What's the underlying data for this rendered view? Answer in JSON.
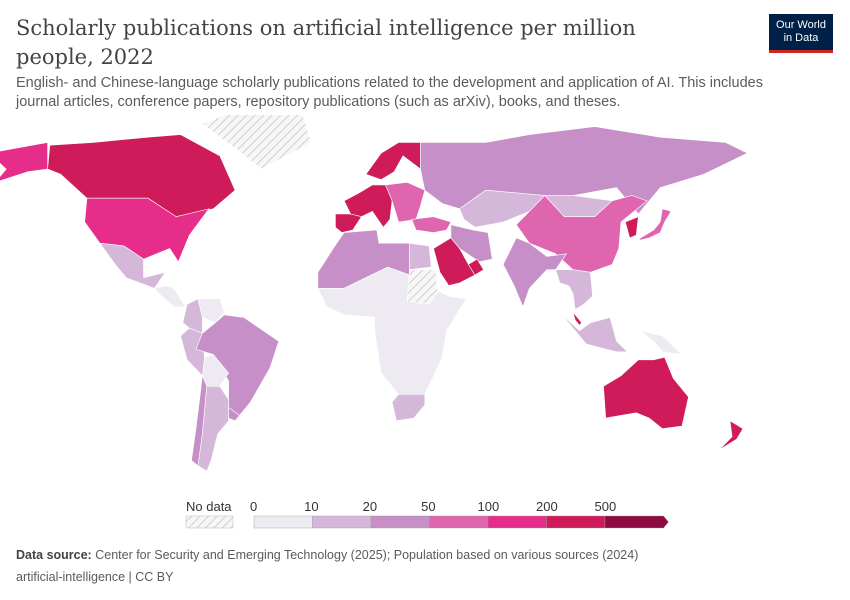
{
  "title": "Scholarly publications on artificial intelligence per million people, 2022",
  "subtitle": "English- and Chinese-language scholarly publications related to the development and application of AI. This includes journal articles, conference papers, repository publications (such as arXiv), books, and theses.",
  "logo": {
    "line1": "Our World",
    "line2": "in Data"
  },
  "legend": {
    "no_data_label": "No data",
    "no_data_color": "#eeeeee",
    "ticks": [
      "0",
      "10",
      "20",
      "50",
      "100",
      "200",
      "500"
    ],
    "colors": [
      "#eeeaf2",
      "#d5b7da",
      "#c68fc7",
      "#de65ae",
      "#e62d8a",
      "#cf1b5a",
      "#8e0a3f"
    ]
  },
  "map_regions": [
    {
      "name": "Canada",
      "bin": 5
    },
    {
      "name": "United States",
      "bin": 4
    },
    {
      "name": "Alaska",
      "bin": 4
    },
    {
      "name": "Mexico",
      "bin": 1
    },
    {
      "name": "Central America",
      "bin": 0
    },
    {
      "name": "Greenland",
      "bin": -1
    },
    {
      "name": "Colombia",
      "bin": 1
    },
    {
      "name": "Venezuela",
      "bin": 0
    },
    {
      "name": "Peru",
      "bin": 1
    },
    {
      "name": "Brazil",
      "bin": 2
    },
    {
      "name": "Bolivia",
      "bin": 0
    },
    {
      "name": "Chile",
      "bin": 2
    },
    {
      "name": "Argentina",
      "bin": 1
    },
    {
      "name": "Uruguay",
      "bin": 2
    },
    {
      "name": "Western Europe",
      "bin": 5
    },
    {
      "name": "Scandinavia",
      "bin": 5
    },
    {
      "name": "Iberia",
      "bin": 5
    },
    {
      "name": "Eastern Europe",
      "bin": 3
    },
    {
      "name": "Russia",
      "bin": 2
    },
    {
      "name": "Kazakhstan",
      "bin": 1
    },
    {
      "name": "Mongolia",
      "bin": 1
    },
    {
      "name": "China",
      "bin": 3
    },
    {
      "name": "Korea",
      "bin": 5
    },
    {
      "name": "Japan",
      "bin": 3
    },
    {
      "name": "India",
      "bin": 2
    },
    {
      "name": "Iran",
      "bin": 2
    },
    {
      "name": "Turkey",
      "bin": 3
    },
    {
      "name": "Saudi Arabia",
      "bin": 5
    },
    {
      "name": "UAE",
      "bin": 5
    },
    {
      "name": "North Africa",
      "bin": 2
    },
    {
      "name": "Egypt",
      "bin": 1
    },
    {
      "name": "Sub-Saharan Africa",
      "bin": 0
    },
    {
      "name": "Sudan",
      "bin": -1
    },
    {
      "name": "South Africa",
      "bin": 1
    },
    {
      "name": "Southeast Asia",
      "bin": 1
    },
    {
      "name": "Malaysia",
      "bin": 5
    },
    {
      "name": "Indonesia",
      "bin": 1
    },
    {
      "name": "Australia",
      "bin": 5
    },
    {
      "name": "New Zealand",
      "bin": 5
    },
    {
      "name": "Papua New Guinea",
      "bin": 0
    }
  ],
  "footer": {
    "source_label": "Data source:",
    "source_text": "Center for Security and Emerging Technology (2025); Population based on various sources (2024)",
    "slug": "artificial-intelligence | CC BY"
  }
}
